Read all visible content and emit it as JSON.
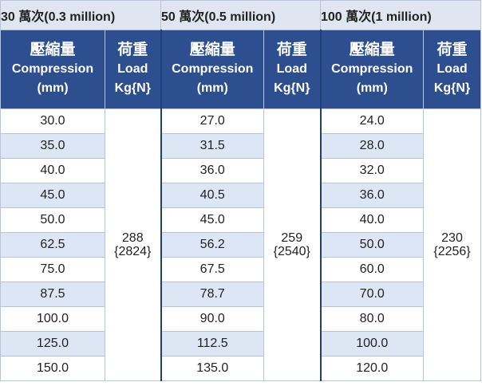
{
  "groups": [
    {
      "title": "30 萬次(0.3 million)",
      "compression_header": {
        "zh": "壓縮量",
        "en": "Compression",
        "unit": "(mm)"
      },
      "load_header": {
        "zh": "荷重",
        "en": "Load",
        "unit": "Kg{N}"
      },
      "compression": [
        "30.0",
        "35.0",
        "40.0",
        "45.0",
        "50.0",
        "62.5",
        "75.0",
        "87.5",
        "100.0",
        "125.0",
        "150.0"
      ],
      "load_kg": "288",
      "load_n": "{2824}"
    },
    {
      "title": "50 萬次(0.5 million)",
      "compression_header": {
        "zh": "壓縮量",
        "en": "Compression",
        "unit": "(mm)"
      },
      "load_header": {
        "zh": "荷重",
        "en": "Load",
        "unit": "Kg{N}"
      },
      "compression": [
        "27.0",
        "31.5",
        "36.0",
        "40.5",
        "45.0",
        "56.2",
        "67.5",
        "78.7",
        "90.0",
        "112.5",
        "135.0"
      ],
      "load_kg": "259",
      "load_n": "{2540}"
    },
    {
      "title": "100 萬次(1 million)",
      "compression_header": {
        "zh": "壓縮量",
        "en": "Compression",
        "unit": "(mm)"
      },
      "load_header": {
        "zh": "荷重",
        "en": "Load",
        "unit": "Kg{N}"
      },
      "compression": [
        "24.0",
        "28.0",
        "32.0",
        "36.0",
        "40.0",
        "50.0",
        "60.0",
        "70.0",
        "80.0",
        "100.0",
        "120.0"
      ],
      "load_kg": "230",
      "load_n": "{2256}"
    }
  ]
}
